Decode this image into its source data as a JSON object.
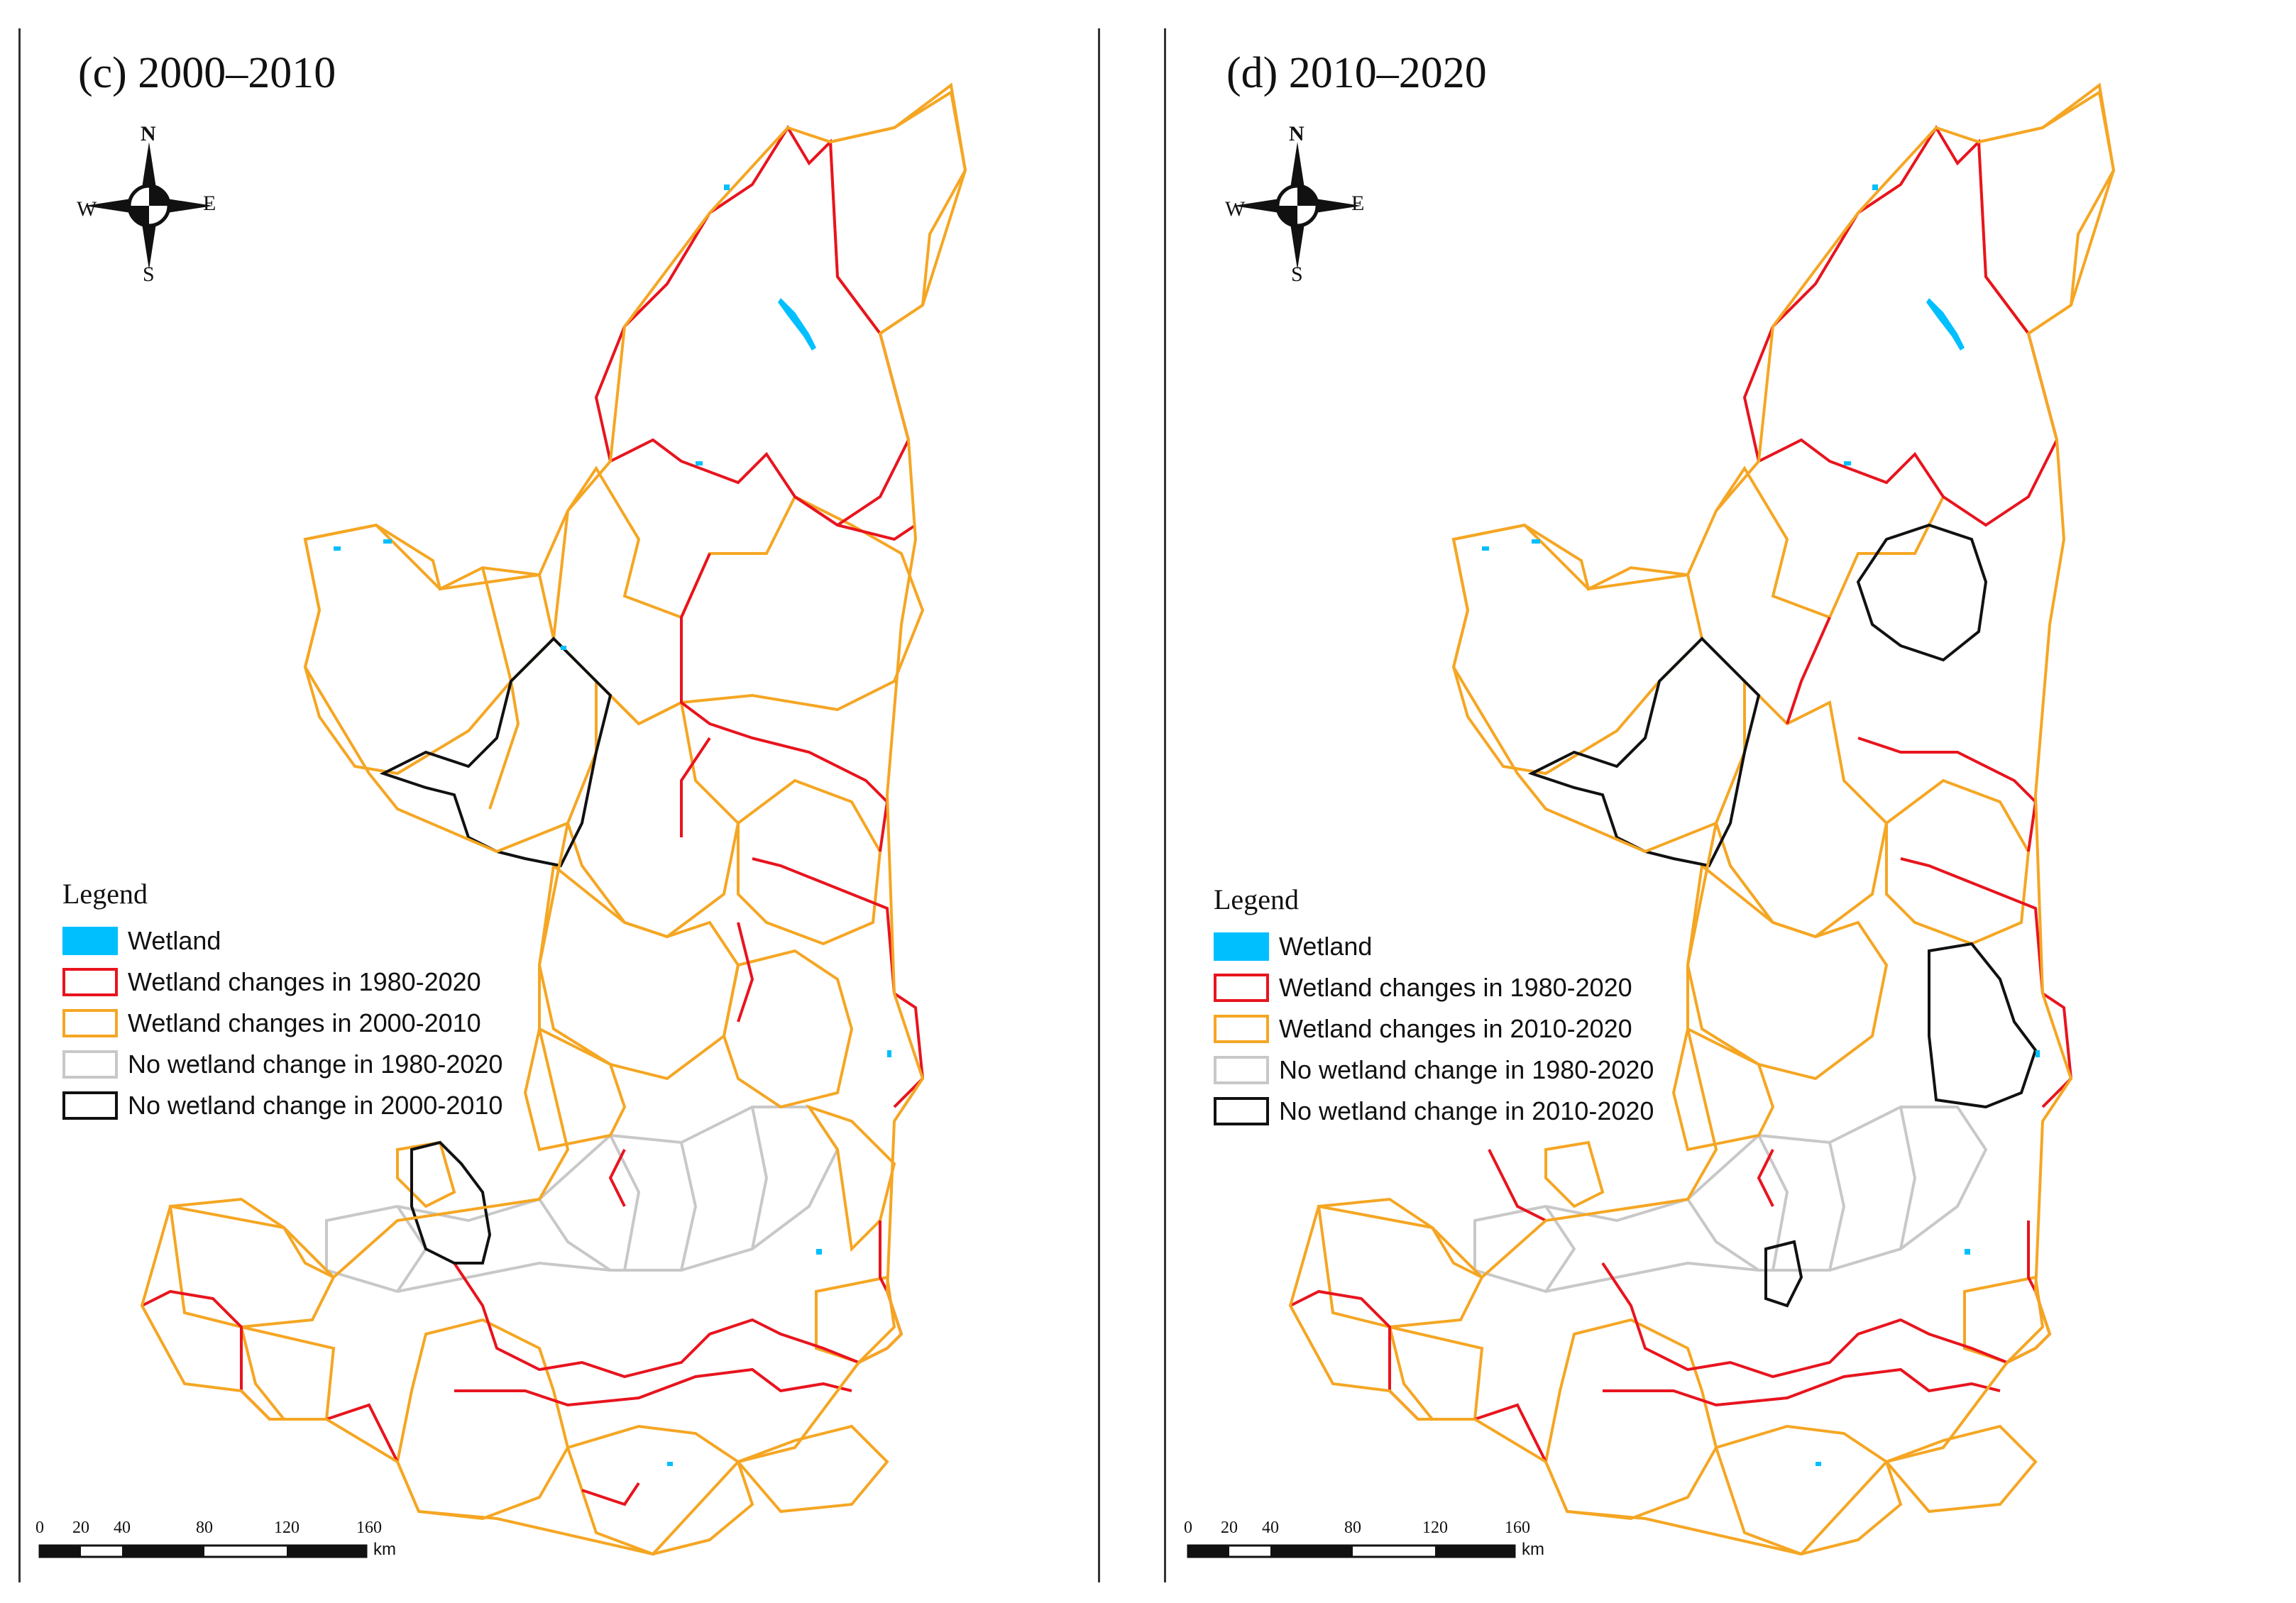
{
  "panels": [
    {
      "title": "(c) 2000–2010",
      "legend": {
        "heading": "Legend",
        "items": [
          {
            "label": "Wetland",
            "style": "fill",
            "color": "#00bfff"
          },
          {
            "label": "Wetland changes in 1980-2020",
            "style": "outline",
            "color": "#e8141e"
          },
          {
            "label": "Wetland changes in 2000-2010",
            "style": "outline",
            "color": "#f5a623"
          },
          {
            "label": "No wetland change in 1980-2020",
            "style": "outline",
            "color": "#c8c8c8"
          },
          {
            "label": "No wetland change in 2000-2010",
            "style": "outline",
            "color": "#111111"
          }
        ]
      },
      "compass": {
        "n": "N",
        "s": "S",
        "e": "E",
        "w": "W"
      },
      "scale": {
        "ticks": [
          "0",
          "20",
          "40",
          "80",
          "120",
          "160"
        ],
        "unit": "km"
      }
    },
    {
      "title": "(d) 2010–2020",
      "legend": {
        "heading": "Legend",
        "items": [
          {
            "label": "Wetland",
            "style": "fill",
            "color": "#00bfff"
          },
          {
            "label": "Wetland changes in 1980-2020",
            "style": "outline",
            "color": "#e8141e"
          },
          {
            "label": "Wetland changes in 2010-2020",
            "style": "outline",
            "color": "#f5a623"
          },
          {
            "label": "No wetland change in 1980-2020",
            "style": "outline",
            "color": "#c8c8c8"
          },
          {
            "label": "No wetland change in 2010-2020",
            "style": "outline",
            "color": "#111111"
          }
        ]
      },
      "compass": {
        "n": "N",
        "s": "S",
        "e": "E",
        "w": "W"
      },
      "scale": {
        "ticks": [
          "0",
          "20",
          "40",
          "80",
          "120",
          "160"
        ],
        "unit": "km"
      }
    }
  ],
  "colors": {
    "wetland": "#00bfff",
    "change_1980_2020": "#e8141e",
    "change_period": "#f5a623",
    "no_change_1980_2020": "#c8c8c8",
    "no_change_period": "#111111"
  }
}
